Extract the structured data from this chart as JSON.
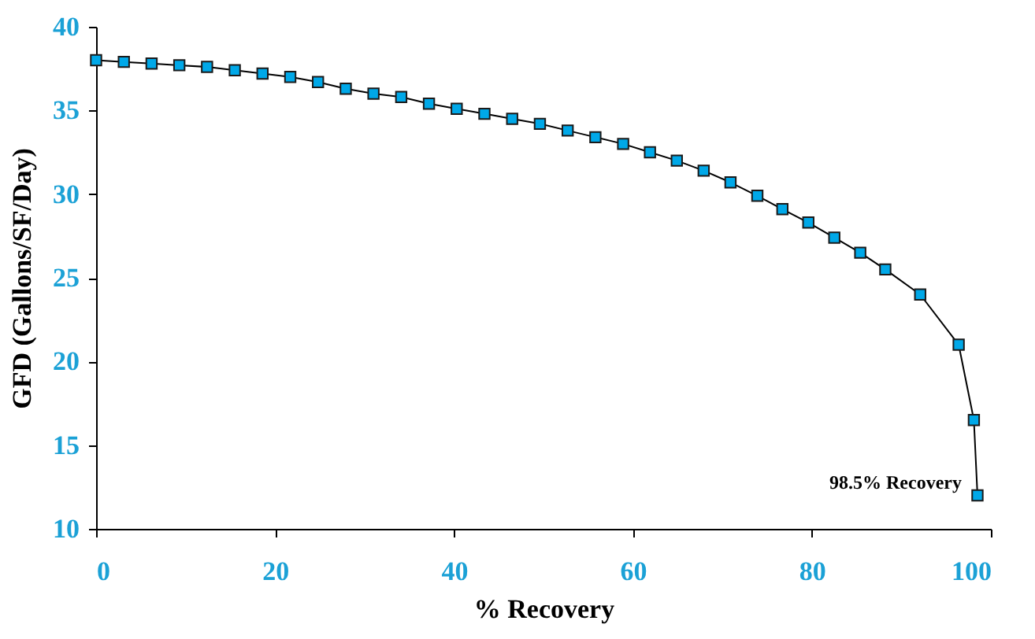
{
  "chart_data": {
    "type": "line",
    "xlabel": "% Recovery",
    "ylabel": "GFD (Gallons/SF/Day)",
    "x": [
      0,
      3.1,
      6.2,
      9.3,
      12.4,
      15.5,
      18.6,
      21.7,
      24.8,
      27.9,
      31.0,
      34.1,
      37.2,
      40.3,
      43.4,
      46.5,
      49.6,
      52.7,
      55.8,
      58.9,
      61.9,
      64.9,
      67.9,
      70.9,
      73.9,
      76.7,
      79.6,
      82.5,
      85.4,
      88.2,
      92.1,
      96.4,
      98.1,
      98.5
    ],
    "series": [
      {
        "color": "#00a8e8",
        "values": [
          38.0,
          37.9,
          37.8,
          37.7,
          37.6,
          37.4,
          37.2,
          37.0,
          36.7,
          36.3,
          36.0,
          35.8,
          35.4,
          35.1,
          34.8,
          34.5,
          34.2,
          33.8,
          33.4,
          33.0,
          32.5,
          32.0,
          31.4,
          30.7,
          29.9,
          29.1,
          28.3,
          27.4,
          26.5,
          25.5,
          24.0,
          21.0,
          16.5,
          12.0
        ]
      }
    ],
    "xlim": [
      0,
      100
    ],
    "xticks": [
      0,
      20,
      40,
      60,
      80,
      100
    ],
    "ylim": [
      10,
      40
    ],
    "yticks": [
      10,
      15,
      20,
      25,
      30,
      35,
      40
    ],
    "marker": "square",
    "line_style": "solid",
    "grid": false,
    "annotations": [
      {
        "text": "98.5% Recovery",
        "x": 98.5,
        "y": 12.0
      }
    ]
  }
}
